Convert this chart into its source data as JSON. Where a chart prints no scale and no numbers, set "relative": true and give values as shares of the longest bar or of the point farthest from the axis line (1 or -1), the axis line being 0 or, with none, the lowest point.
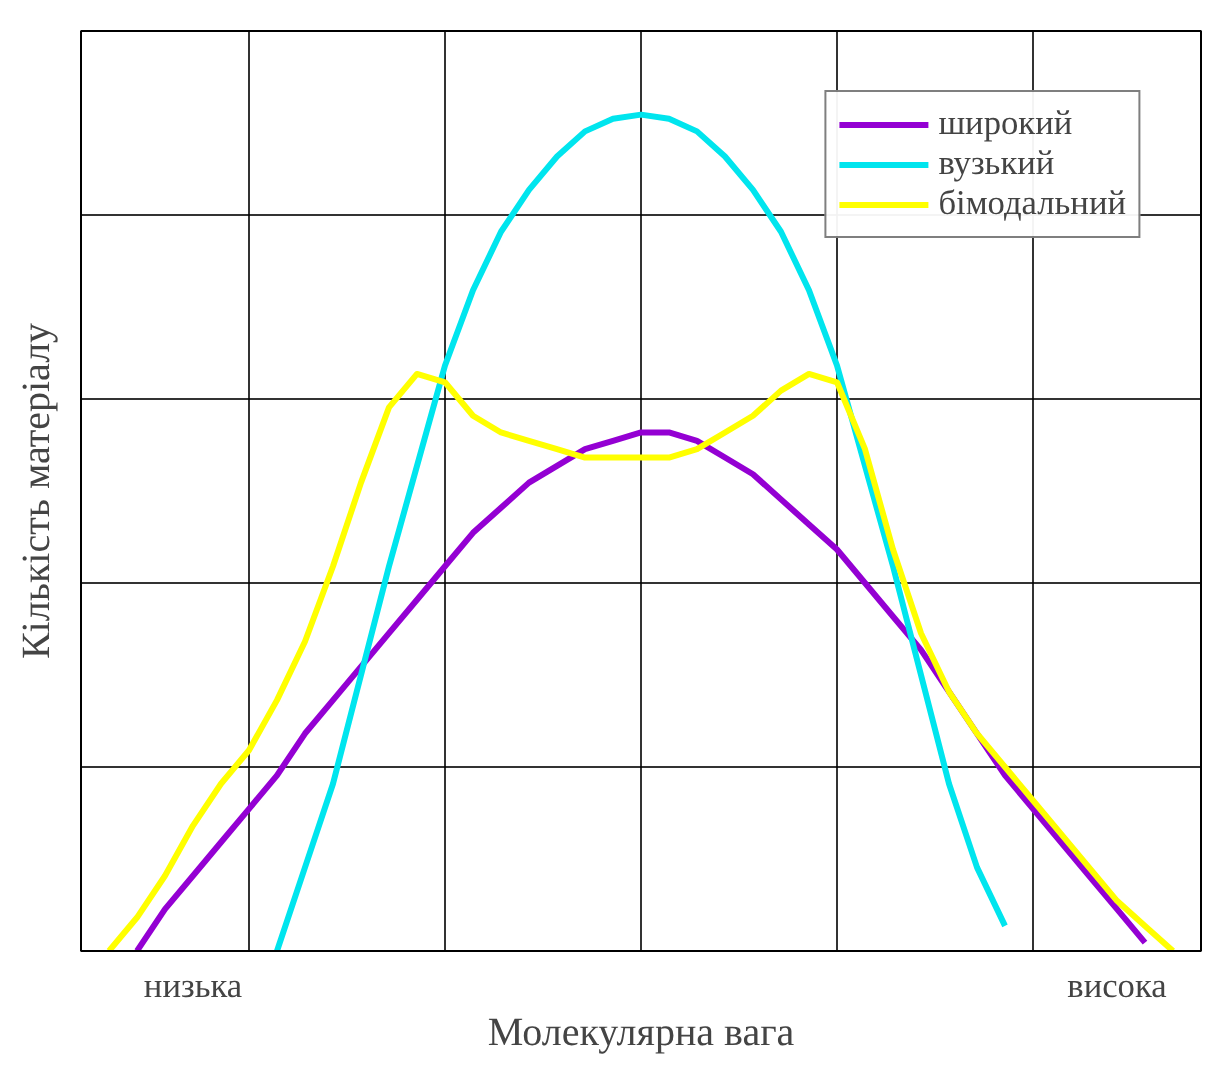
{
  "chart_data": {
    "type": "line",
    "relative": true,
    "xlabel": "Молекулярна вага",
    "ylabel": "Кількість матеріалу",
    "categories": [
      null,
      null,
      null,
      null,
      null,
      null,
      null,
      null,
      null,
      null,
      null,
      null,
      null,
      null,
      null,
      null,
      null,
      null,
      null,
      null,
      null,
      null,
      null,
      null,
      null,
      null,
      null,
      null,
      null,
      null,
      null,
      null,
      null,
      null,
      null,
      null,
      null,
      null,
      null,
      null,
      null
    ],
    "series": [
      {
        "name": "широкий",
        "color": "#9400d3",
        "values": [
          null,
          null,
          0,
          0.05,
          0.09,
          0.13,
          0.17,
          0.21,
          0.26,
          0.3,
          0.34,
          0.38,
          0.42,
          0.46,
          0.5,
          0.53,
          0.56,
          0.58,
          0.6,
          0.61,
          0.62,
          0.62,
          0.61,
          0.59,
          0.57,
          0.54,
          0.51,
          0.48,
          0.44,
          0.4,
          0.36,
          0.31,
          0.26,
          0.21,
          0.17,
          0.13,
          0.09,
          0.05,
          0.01,
          null,
          null
        ]
      },
      {
        "name": "вузький",
        "color": "#00e5ee",
        "values": [
          null,
          null,
          null,
          null,
          null,
          null,
          null,
          0,
          0.1,
          0.2,
          0.33,
          0.46,
          0.58,
          0.7,
          0.79,
          0.86,
          0.91,
          0.95,
          0.98,
          0.995,
          1.0,
          0.995,
          0.98,
          0.95,
          0.91,
          0.86,
          0.79,
          0.7,
          0.58,
          0.46,
          0.33,
          0.2,
          0.1,
          0.03,
          null,
          null,
          null,
          null,
          null,
          null,
          null
        ]
      },
      {
        "name": "бімодальний",
        "color": "#ffff00",
        "values": [
          null,
          0,
          0.04,
          0.09,
          0.15,
          0.2,
          0.24,
          0.3,
          0.37,
          0.46,
          0.56,
          0.65,
          0.69,
          0.68,
          0.64,
          0.62,
          0.61,
          0.6,
          0.59,
          0.59,
          0.59,
          0.59,
          0.6,
          0.62,
          0.64,
          0.67,
          0.69,
          0.68,
          0.6,
          0.48,
          0.38,
          0.31,
          0.26,
          0.22,
          0.18,
          0.14,
          0.1,
          0.06,
          0.03,
          0,
          null
        ]
      }
    ],
    "annotations": [
      "низька",
      "висока"
    ],
    "grid": true,
    "legend": "top right"
  }
}
